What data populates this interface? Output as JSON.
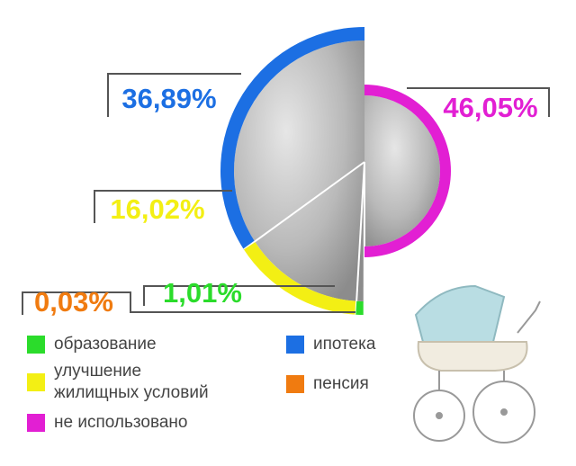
{
  "chart_data": {
    "type": "pie",
    "categories": [
      "ипотека",
      "улучшение жилищных условий",
      "образование",
      "пенсия",
      "не использовано"
    ],
    "values": [
      36.89,
      16.02,
      1.01,
      0.03,
      46.05
    ],
    "value_labels": [
      "36,89%",
      "16,02%",
      "1,01%",
      "0,03%",
      "46,05%"
    ],
    "colors": [
      "#1c6fe3",
      "#f3ef14",
      "#2bdc2b",
      "#f07b10",
      "#e21fd3"
    ]
  }
}
